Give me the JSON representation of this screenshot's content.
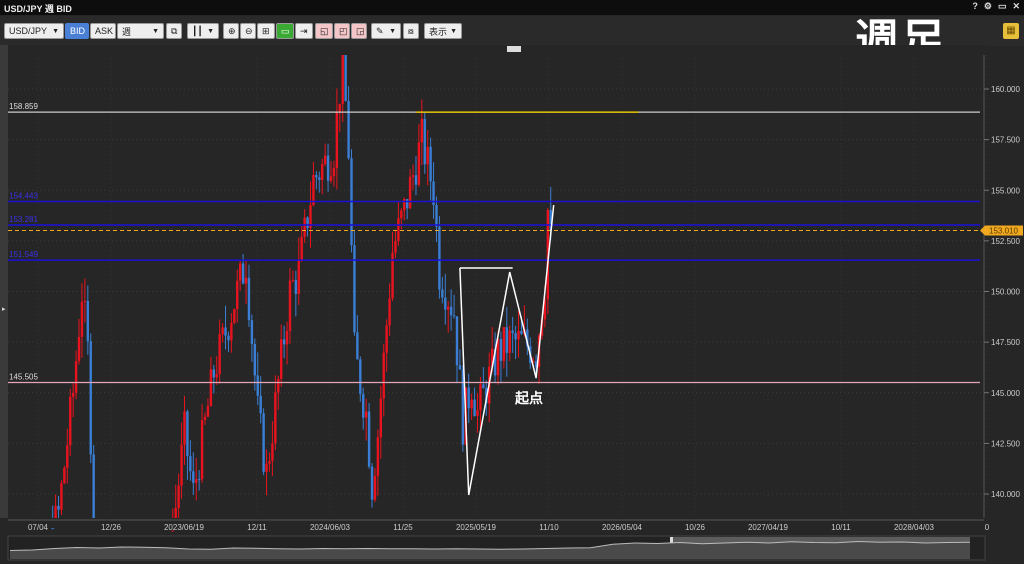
{
  "window": {
    "title": "USD/JPY 週 BID",
    "controls": [
      "?",
      "⚙",
      "▭",
      "✕"
    ]
  },
  "toolbar": {
    "symbol": "USD/JPY",
    "bid": "BID",
    "ask": "ASK",
    "period": "週",
    "display": "表示",
    "drop": "▼"
  },
  "overlay_title": "週足",
  "annotation": "起点",
  "colors": {
    "up": "#e8131e",
    "down": "#3a7fd5",
    "bg": "#262626",
    "level_blue": "#1a10d8",
    "current": "#f0a820",
    "resistance": "#cccccc",
    "support": "#e2a5b4",
    "yellow_line": "#e0c000"
  },
  "price_axis": {
    "ticks": [
      "160.000",
      "157.500",
      "155.000",
      "152.500",
      "150.000",
      "147.500",
      "145.000",
      "142.500",
      "140.000"
    ],
    "current_price": "153.010"
  },
  "time_axis": {
    "ticks": [
      "07/04",
      "12/26",
      "2023/06/19",
      "12/11",
      "2024/06/03",
      "11/25",
      "2025/05/19",
      "11/10",
      "2026/05/04",
      "10/26",
      "2027/04/19",
      "10/11",
      "2028/04/03",
      "0"
    ]
  },
  "levels": [
    {
      "label": "158.859",
      "price": 158.859,
      "kind": "resistance"
    },
    {
      "label": "154.443",
      "price": 154.443,
      "kind": "level_blue"
    },
    {
      "label": "153.281",
      "price": 153.281,
      "kind": "level_blue"
    },
    {
      "label": "151.549",
      "price": 151.549,
      "kind": "level_blue"
    },
    {
      "label": "145.505",
      "price": 145.505,
      "kind": "support"
    }
  ],
  "chart_data": {
    "type": "candlestick",
    "price_range": [
      138.6,
      162.5
    ],
    "close_path": [
      [
        "2022/05/02",
        130
      ],
      [
        "2022/07/04",
        136
      ],
      [
        "2022/08/22",
        139
      ],
      [
        "2022/09/26",
        145
      ],
      [
        "2022/10/17",
        150
      ],
      [
        "2022/10/31",
        147
      ],
      [
        "2022/11/14",
        139
      ],
      [
        "2022/12/26",
        132
      ],
      [
        "2023/03/06",
        134
      ],
      [
        "2023/05/15",
        137
      ],
      [
        "2023/06/19",
        143
      ],
      [
        "2023/07/10",
        140
      ],
      [
        "2023/08/28",
        146
      ],
      [
        "2023/10/16",
        149.5
      ],
      [
        "2023/11/13",
        151.5
      ],
      [
        "2023/12/11",
        144
      ],
      [
        "2024/01/01",
        141
      ],
      [
        "2024/02/26",
        150
      ],
      [
        "2024/03/18",
        151
      ],
      [
        "2024/04/22",
        155.5
      ],
      [
        "2024/06/10",
        157
      ],
      [
        "2024/07/01",
        161.5
      ],
      [
        "2024/07/15",
        157
      ],
      [
        "2024/07/29",
        147
      ],
      [
        "2024/08/26",
        144
      ],
      [
        "2024/09/09",
        140.5
      ],
      [
        "2024/09/23",
        143
      ],
      [
        "2024/10/28",
        152
      ],
      [
        "2024/11/25",
        154
      ],
      [
        "2025/01/06",
        157.5
      ],
      [
        "2025/02/03",
        155
      ],
      [
        "2025/02/17",
        151
      ],
      [
        "2025/03/24",
        149
      ],
      [
        "2025/04/14",
        143.5
      ],
      [
        "2025/05/05",
        145.5
      ],
      [
        "2025/05/19",
        144
      ],
      [
        "2025/07/07",
        147
      ],
      [
        "2025/08/04",
        147.5
      ],
      [
        "2025/09/08",
        147.5
      ],
      [
        "2025/10/06",
        147
      ],
      [
        "2025/10/27",
        150.5
      ],
      [
        "2025/11/03",
        154
      ],
      [
        "2025/11/10",
        153.01
      ]
    ],
    "drawings": {
      "zigzag": [
        [
          "2025/04/07",
          151.16
        ],
        [
          "2025/04/28",
          139.95
        ],
        [
          "2025/08/04",
          150.96
        ],
        [
          "2025/10/06",
          145.73
        ],
        [
          "2025/11/17",
          154.27
        ]
      ],
      "box_top": [
        [
          "2025/04/07",
          151.16
        ],
        [
          "2025/08/11",
          151.16
        ]
      ],
      "yellow_line": [
        [
          "2024/12/23",
          158.859
        ],
        [
          "2026/06/08",
          158.859
        ]
      ]
    },
    "navigator": [
      30,
      32,
      38,
      42,
      40,
      44,
      43,
      41,
      36,
      35,
      40,
      39,
      37,
      36,
      38,
      37,
      38,
      37,
      37,
      36,
      37,
      36,
      35,
      36,
      38,
      40,
      41,
      55,
      60,
      58,
      62,
      57,
      60,
      63,
      60,
      65,
      62,
      61,
      66,
      63,
      64,
      60,
      62,
      63
    ]
  }
}
